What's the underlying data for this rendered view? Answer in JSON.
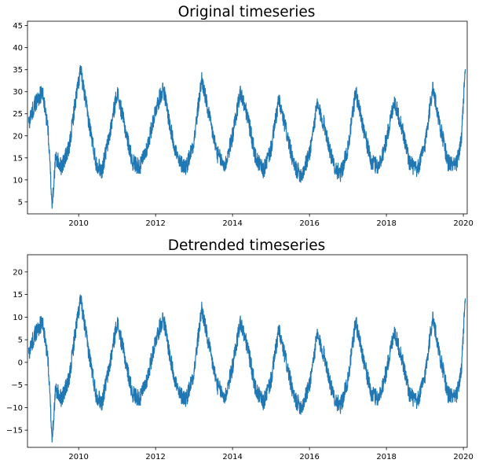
{
  "figure": {
    "colors": {
      "line": "#1f77b4",
      "background": "#ffffff",
      "axes": "#000000"
    }
  },
  "chart_data": [
    {
      "type": "line",
      "title": "Original timeseries",
      "xlabel": "",
      "ylabel": "",
      "xlim": [
        2008.67,
        2020.1
      ],
      "ylim": [
        2.3,
        46
      ],
      "xticks": [
        2010,
        2012,
        2014,
        2016,
        2018,
        2020
      ],
      "xtick_labels": [
        "2010",
        "2012",
        "2014",
        "2016",
        "2018",
        "2020"
      ],
      "yticks": [
        5,
        10,
        15,
        20,
        25,
        30,
        35,
        40,
        45
      ],
      "ytick_labels": [
        "5",
        "10",
        "15",
        "20",
        "25",
        "30",
        "35",
        "40",
        "45"
      ],
      "grid": false,
      "legend": "none",
      "series": [
        {
          "color": "#1f77b4",
          "x": [
            2008.7,
            2008.85,
            2009.05,
            2009.2,
            2009.31,
            2009.4,
            2009.55,
            2009.75,
            2009.9,
            2010.05,
            2010.25,
            2010.45,
            2010.6,
            2010.8,
            2011.0,
            2011.2,
            2011.4,
            2011.6,
            2011.8,
            2012.0,
            2012.2,
            2012.4,
            2012.6,
            2012.8,
            2013.0,
            2013.2,
            2013.4,
            2013.6,
            2013.8,
            2014.0,
            2014.2,
            2014.4,
            2014.6,
            2014.8,
            2015.0,
            2015.2,
            2015.4,
            2015.6,
            2015.8,
            2016.0,
            2016.2,
            2016.4,
            2016.6,
            2016.8,
            2017.0,
            2017.2,
            2017.4,
            2017.6,
            2017.8,
            2018.0,
            2018.2,
            2018.4,
            2018.6,
            2018.8,
            2019.0,
            2019.2,
            2019.4,
            2019.6,
            2019.8,
            2019.95,
            2020.05
          ],
          "y": [
            23,
            27,
            30,
            22,
            4.2,
            15,
            13,
            17,
            27,
            35,
            24,
            14,
            12,
            20,
            30,
            22,
            14,
            13,
            18,
            26,
            31,
            21,
            14,
            13,
            19,
            33,
            24,
            16,
            13,
            20,
            30,
            24,
            15,
            12,
            17,
            28,
            21,
            13,
            11,
            16,
            27,
            22,
            14,
            11,
            17,
            30,
            22,
            14,
            13,
            19,
            28,
            22,
            14,
            12,
            18,
            31,
            22,
            14,
            13,
            19,
            36
          ]
        }
      ]
    },
    {
      "type": "line",
      "title": "Detrended timeseries",
      "xlabel": "",
      "ylabel": "",
      "xlim": [
        2008.67,
        2020.1
      ],
      "ylim": [
        -18.8,
        23.8
      ],
      "xticks": [
        2010,
        2012,
        2014,
        2016,
        2018,
        2020
      ],
      "xtick_labels": [
        "2010",
        "2012",
        "2014",
        "2016",
        "2018",
        "2020"
      ],
      "yticks": [
        -15,
        -10,
        -5,
        0,
        5,
        10,
        15,
        20
      ],
      "ytick_labels": [
        "−15",
        "−10",
        "−5",
        "0",
        "5",
        "10",
        "15",
        "20"
      ],
      "grid": false,
      "legend": "none",
      "series": [
        {
          "color": "#1f77b4",
          "x": [
            2008.7,
            2008.85,
            2009.05,
            2009.2,
            2009.31,
            2009.4,
            2009.55,
            2009.75,
            2009.9,
            2010.05,
            2010.25,
            2010.45,
            2010.6,
            2010.8,
            2011.0,
            2011.2,
            2011.4,
            2011.6,
            2011.8,
            2012.0,
            2012.2,
            2012.4,
            2012.6,
            2012.8,
            2013.0,
            2013.2,
            2013.4,
            2013.6,
            2013.8,
            2014.0,
            2014.2,
            2014.4,
            2014.6,
            2014.8,
            2015.0,
            2015.2,
            2015.4,
            2015.6,
            2015.8,
            2016.0,
            2016.2,
            2016.4,
            2016.6,
            2016.8,
            2017.0,
            2017.2,
            2017.4,
            2017.6,
            2017.8,
            2018.0,
            2018.2,
            2018.4,
            2018.6,
            2018.8,
            2019.0,
            2019.2,
            2019.4,
            2019.6,
            2019.8,
            2019.95,
            2020.05
          ],
          "y": [
            2,
            6,
            9,
            1,
            -17,
            -6,
            -8,
            -4,
            6,
            14,
            3,
            -7,
            -9,
            -1,
            9,
            1,
            -7,
            -8,
            -3,
            5,
            10,
            0,
            -7,
            -8,
            -2,
            12,
            3,
            -5,
            -8,
            -1,
            9,
            3,
            -6,
            -9,
            -4,
            7,
            0,
            -8,
            -10,
            -5,
            6,
            1,
            -7,
            -10,
            -4,
            9,
            1,
            -7,
            -8,
            -2,
            7,
            1,
            -7,
            -9,
            -3,
            10,
            1,
            -7,
            -8,
            -2,
            15
          ]
        }
      ]
    }
  ]
}
